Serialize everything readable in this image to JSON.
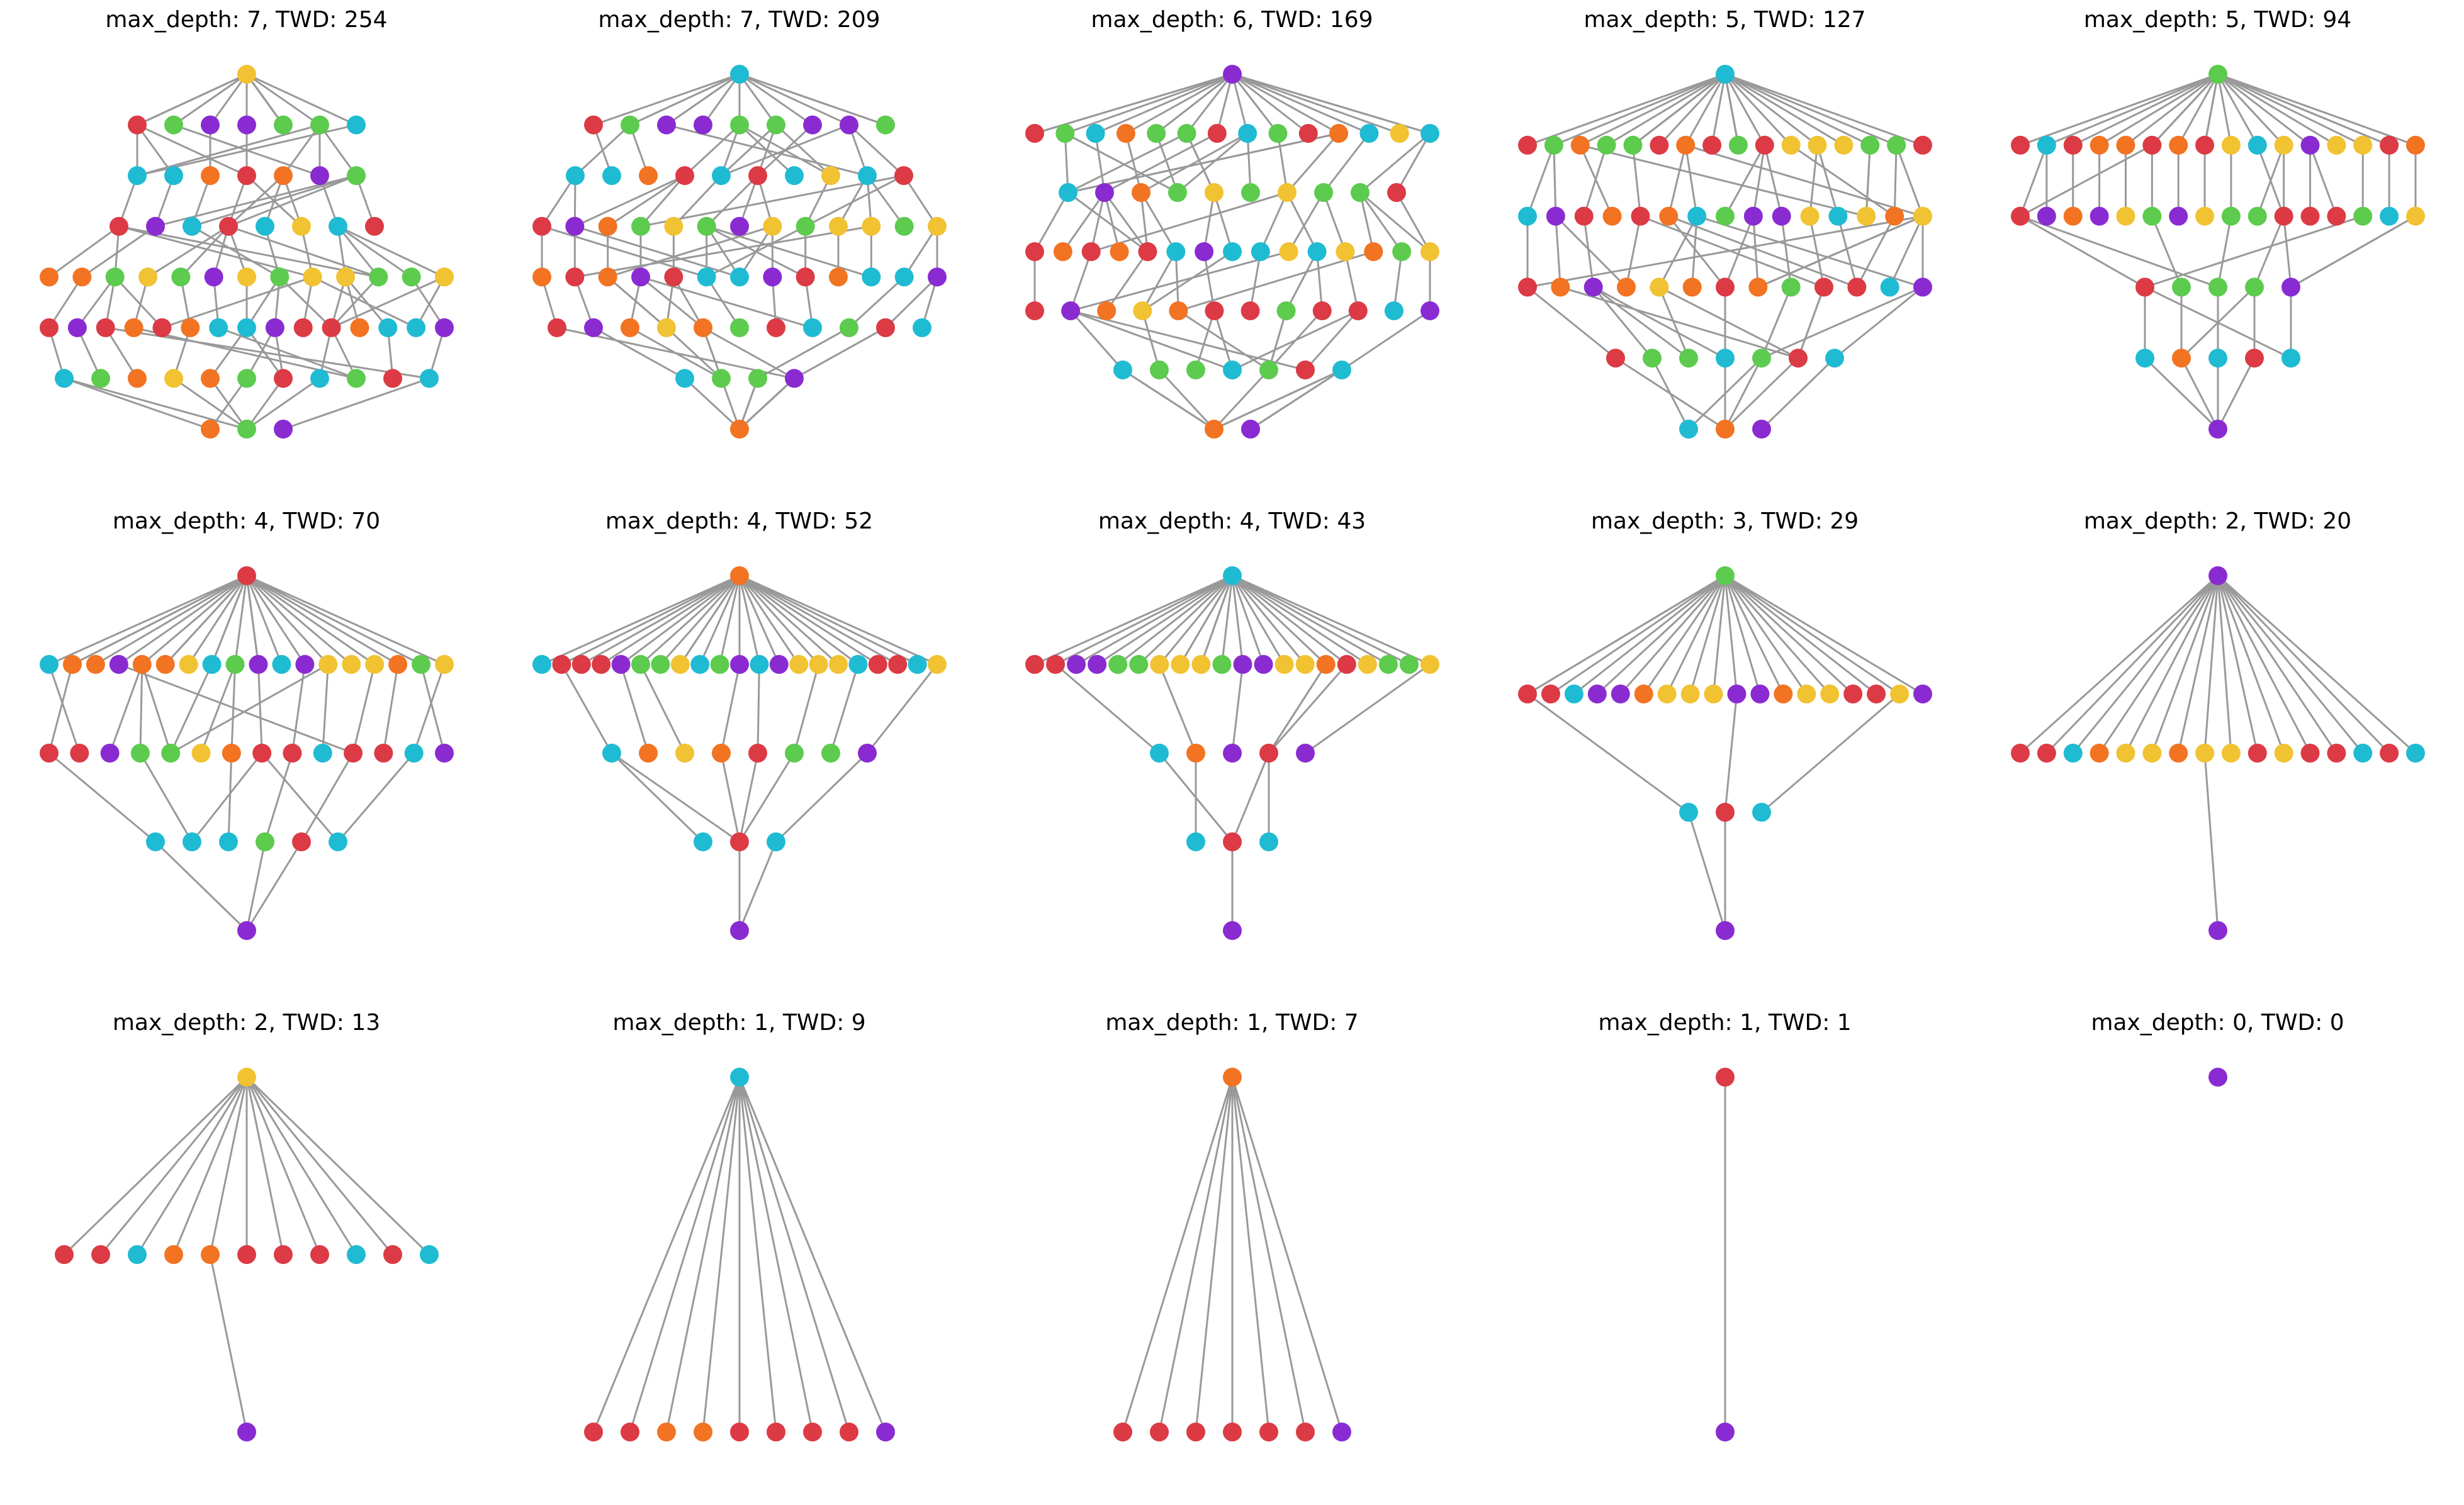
{
  "panel_titles": [
    "max_depth: 7, TWD: 254",
    "max_depth: 7, TWD: 209",
    "max_depth: 6, TWD: 169",
    "max_depth: 5, TWD: 127",
    "max_depth: 5, TWD: 94",
    "max_depth: 4, TWD: 70",
    "max_depth: 4, TWD: 52",
    "max_depth: 4, TWD: 43",
    "max_depth: 3, TWD: 29",
    "max_depth: 2, TWD: 20",
    "max_depth: 2, TWD: 13",
    "max_depth: 1, TWD: 9",
    "max_depth: 1, TWD: 7",
    "max_depth: 1, TWD: 1",
    "max_depth: 0, TWD: 0"
  ],
  "colors": {
    "Y": "#F1C232",
    "R": "#DC3A45",
    "G": "#5CCB4E",
    "P": "#8A2BD2",
    "C": "#1FBBD3",
    "O": "#F27322",
    "edge": "#999999"
  },
  "trees": [
    {
      "levels": [
        "Y",
        "RGPPGGC",
        "CCOROPG",
        "RPCRCYCR",
        "OOGYGPYGYYGGY",
        "RPROROCCPRROCCP",
        "CGOYOGRCGRC",
        "OGP"
      ],
      "edges": 100
    },
    {
      "levels": [
        "C",
        "RGPPGGPPG",
        "CCORCRCYCR",
        "RPOGYGPYGYYGY",
        "OROPRCCPROCCP",
        "RPOYOGRCGRC",
        "CGGP",
        "O"
      ],
      "edges": 95
    },
    {
      "levels": [
        "P",
        "RGCOGGRCGROCYC",
        "CPOGYGYGGR",
        "RORORCPCCYCYOGY",
        "RPOYORRGRRCP",
        "CGGCGRC",
        "OP"
      ],
      "edges": 92
    },
    {
      "levels": [
        "C",
        "RGOGGRORGRYYYGGR",
        "CPROROCGPPYCYOY",
        "ROPOYOROGRRCP",
        "RGGCGRC",
        "COP"
      ],
      "edges": 82
    },
    {
      "levels": [
        "G",
        "RCROORORYCYPYYRO",
        "RPOPYGPYGGRRRGCY",
        "RGGGP",
        "COCRC",
        "P"
      ],
      "edges": 60
    },
    {
      "levels": [
        "R",
        "COOPOOYCGPCPYYYOGY",
        "RRPGGYORRCRRCP",
        "CCCGRC",
        "P"
      ],
      "edges": 50
    },
    {
      "levels": [
        "O",
        "CRRRPGGYCGPCPYYYCRRCY",
        "COYORGGP",
        "CRC",
        "P"
      ],
      "edges": 38
    },
    {
      "levels": [
        "C",
        "RRPPGGYYYGPPYYORYGGY",
        "COPRP",
        "CRC",
        "P"
      ],
      "edges": 34
    },
    {
      "levels": [
        "G",
        "RRCPPOYYYPPOYYRRYP",
        "CRC",
        "P"
      ],
      "edges": 24
    },
    {
      "levels": [
        "P",
        "RRCOYYOYYRYRRCRC",
        "P"
      ],
      "edges": 17
    },
    {
      "levels": [
        "Y",
        "RRCOORRRCRC",
        "P"
      ],
      "edges": 12
    },
    {
      "levels": [
        "C",
        "RROORRRRP"
      ],
      "edges": 9
    },
    {
      "levels": [
        "O",
        "RRRRRRP"
      ],
      "edges": 7
    },
    {
      "levels": [
        "R",
        "P"
      ],
      "edges": 1
    },
    {
      "levels": [
        "P"
      ],
      "edges": 0
    }
  ]
}
